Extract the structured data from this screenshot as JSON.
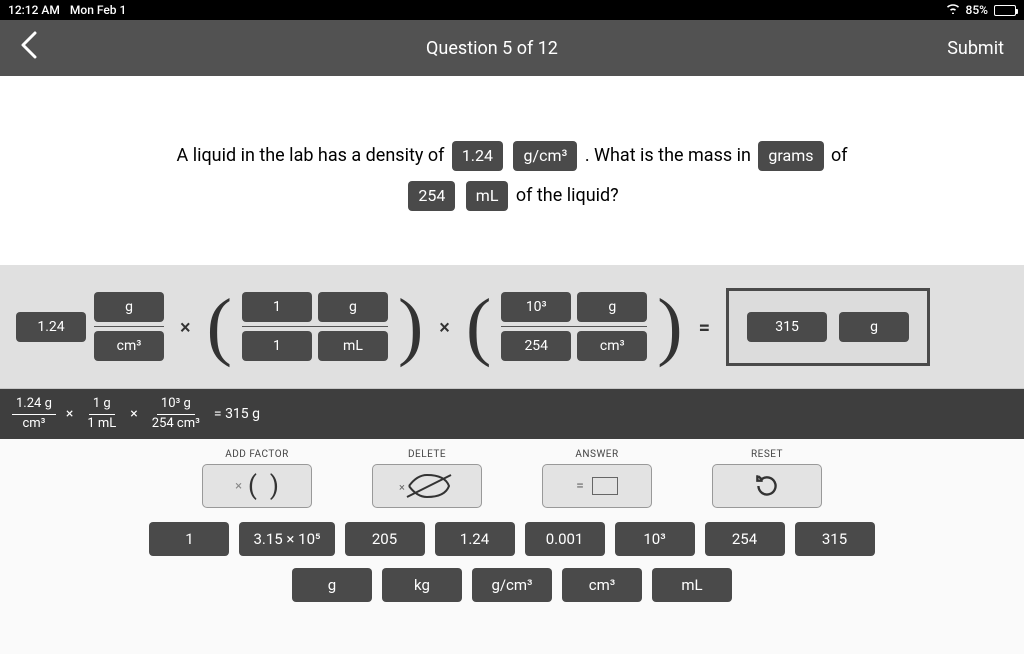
{
  "status": {
    "time": "12:12 AM",
    "date": "Mon Feb 1",
    "battery_pct": "85%"
  },
  "header": {
    "title": "Question 5 of 12",
    "submit": "Submit"
  },
  "question": {
    "t1": "A liquid in the lab has a density of ",
    "v1": "1.24",
    "v2": "g/cm³",
    "t2": " . What is the mass in ",
    "v3": "grams",
    "t3": " of",
    "v4": "254",
    "v5": "mL",
    "t4": " of the liquid?"
  },
  "work": {
    "f1": {
      "coeff": "1.24",
      "top": "g",
      "bot": "cm³"
    },
    "f2": {
      "top1": "1",
      "top2": "g",
      "bot1": "1",
      "bot2": "mL"
    },
    "f3": {
      "top1": "10³",
      "top2": "g",
      "bot1": "254",
      "bot2": "cm³"
    },
    "ans": {
      "val": "315",
      "unit": "g"
    }
  },
  "equation": {
    "p1t": "1.24 g",
    "p1b": "cm³",
    "p2t": "1 g",
    "p2b": "1 mL",
    "p3t": "10³ g",
    "p3b": "254 cm³",
    "eq": "= 315 g"
  },
  "controls": {
    "add_factor": "ADD FACTOR",
    "delete": "DELETE",
    "answer": "ANSWER",
    "reset": "RESET"
  },
  "numbers": [
    "1",
    "3.15 × 10⁵",
    "205",
    "1.24",
    "0.001",
    "10³",
    "254",
    "315"
  ],
  "units": [
    "g",
    "kg",
    "g/cm³",
    "cm³",
    "mL"
  ],
  "colors": {
    "chip_bg": "#4a4a4a",
    "header_bg": "#525252",
    "work_bg": "#e0e0e0",
    "strip_bg": "#3e3e3e",
    "page_bg": "#fafafa"
  }
}
